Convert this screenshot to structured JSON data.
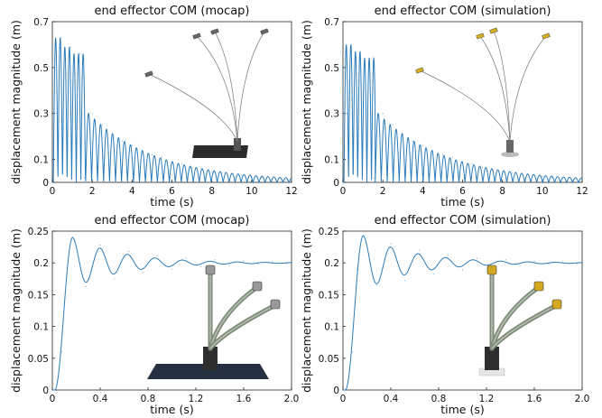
{
  "chart_data": [
    {
      "type": "line",
      "title": "end effector COM (mocap)",
      "xlabel": "time (s)",
      "ylabel": "displacement magnitude (m)",
      "xlim": [
        0,
        12
      ],
      "ylim": [
        0,
        0.7
      ],
      "xticks": [
        "0",
        "2",
        "4",
        "6",
        "8",
        "10",
        "12"
      ],
      "yticks": [
        "0",
        "0.1",
        "0.3",
        "0.5",
        "0.7"
      ],
      "ytick_values": [
        0,
        0.1,
        0.3,
        0.5,
        0.7
      ],
      "grid": false,
      "line_color": "#2b7bba",
      "series": [
        {
          "x": [
            0.05,
            0.23,
            0.45,
            0.68,
            0.91,
            1.14,
            1.37,
            1.6,
            1.7,
            2.0,
            2.5,
            3.0,
            3.5,
            4.0,
            4.5,
            5.0,
            5.5,
            6.0,
            6.5,
            7.0,
            7.5,
            8.0,
            8.5,
            9.0,
            9.5,
            10.0,
            10.5,
            11.0,
            11.5,
            12.0
          ],
          "y": [
            0,
            0.3,
            0.63,
            0,
            0.59,
            0,
            0.56,
            0.02,
            0,
            0.3,
            0.25,
            0.21,
            0.18,
            0.16,
            0.14,
            0.12,
            0.11,
            0.09,
            0.08,
            0.065,
            0.055,
            0.045,
            0.04,
            0.035,
            0.03,
            0.025,
            0.02,
            0.015,
            0.012,
            0.01
          ]
        }
      ],
      "inset_image": "crane-mocap-photo"
    },
    {
      "type": "line",
      "title": "end effector COM (simulation)",
      "xlabel": "time (s)",
      "ylabel": "displacement magnitude (m)",
      "xlim": [
        0,
        12
      ],
      "ylim": [
        0,
        0.7
      ],
      "xticks": [
        "0",
        "2",
        "4",
        "6",
        "8",
        "10",
        "12"
      ],
      "yticks": [
        "0",
        "0.1",
        "0.3",
        "0.5",
        "0.7"
      ],
      "ytick_values": [
        0,
        0.1,
        0.3,
        0.5,
        0.7
      ],
      "grid": false,
      "line_color": "#2b7bba",
      "series": [
        {
          "x": [
            0.05,
            0.2,
            0.42,
            0.65,
            0.88,
            1.1,
            1.33,
            1.55,
            1.65,
            2.0,
            2.5,
            3.0,
            3.5,
            4.0,
            4.5,
            5.0,
            5.5,
            6.0,
            6.5,
            7.0,
            7.5,
            8.0,
            8.5,
            9.0,
            9.5,
            10.0,
            10.5,
            11.0,
            11.5,
            12.0
          ],
          "y": [
            0,
            0.3,
            0.6,
            0,
            0.57,
            0,
            0.54,
            0.02,
            0,
            0.3,
            0.25,
            0.21,
            0.18,
            0.16,
            0.14,
            0.12,
            0.11,
            0.09,
            0.08,
            0.065,
            0.055,
            0.045,
            0.04,
            0.035,
            0.03,
            0.025,
            0.02,
            0.015,
            0.012,
            0.01
          ]
        }
      ],
      "inset_image": "crane-simulation-render"
    },
    {
      "type": "line",
      "title": "end effector COM (mocap)",
      "xlabel": "time (s)",
      "ylabel": "displacement magnitude (m)",
      "xlim": [
        0,
        2.0
      ],
      "ylim": [
        0,
        0.25
      ],
      "xticks": [
        "0",
        "0.4",
        "0.8",
        "1.2",
        "1.6",
        "2.0"
      ],
      "yticks": [
        "0",
        "0.05",
        "0.1",
        "0.15",
        "0.2",
        "0.25"
      ],
      "ytick_values": [
        0,
        0.05,
        0.1,
        0.15,
        0.2,
        0.25
      ],
      "grid": false,
      "line_color": "#2b7bba",
      "series": [
        {
          "x": [
            0.02,
            0.08,
            0.12,
            0.17,
            0.28,
            0.4,
            0.52,
            0.64,
            0.76,
            0.88,
            1.0,
            1.12,
            1.24,
            1.36,
            1.48,
            1.6,
            1.72,
            1.84,
            1.96,
            2.0
          ],
          "y": [
            0,
            0.06,
            0.18,
            0.24,
            0.163,
            0.228,
            0.175,
            0.218,
            0.185,
            0.212,
            0.19,
            0.207,
            0.194,
            0.205,
            0.196,
            0.203,
            0.198,
            0.202,
            0.199,
            0.2
          ]
        }
      ],
      "inset_image": "arm-mocap-photo"
    },
    {
      "type": "line",
      "title": "end effector COM (simulation)",
      "xlabel": "time (s)",
      "ylabel": "displacement magnitude (m)",
      "xlim": [
        0,
        2.0
      ],
      "ylim": [
        0,
        0.25
      ],
      "xticks": [
        "0",
        "0.4",
        "0.8",
        "1.2",
        "1.6",
        "2.0"
      ],
      "yticks": [
        "0",
        "0.05",
        "0.1",
        "0.15",
        "0.2",
        "0.25"
      ],
      "ytick_values": [
        0,
        0.05,
        0.1,
        0.15,
        0.2,
        0.25
      ],
      "grid": false,
      "line_color": "#2b7bba",
      "series": [
        {
          "x": [
            0.02,
            0.08,
            0.12,
            0.17,
            0.28,
            0.4,
            0.52,
            0.64,
            0.76,
            0.88,
            1.0,
            1.12,
            1.24,
            1.36,
            1.48,
            1.6,
            1.72,
            1.84,
            1.96,
            2.0
          ],
          "y": [
            0,
            0.06,
            0.19,
            0.243,
            0.165,
            0.23,
            0.172,
            0.22,
            0.183,
            0.213,
            0.189,
            0.207,
            0.193,
            0.205,
            0.196,
            0.203,
            0.198,
            0.202,
            0.199,
            0.2
          ]
        }
      ],
      "inset_image": "arm-simulation-render"
    }
  ]
}
